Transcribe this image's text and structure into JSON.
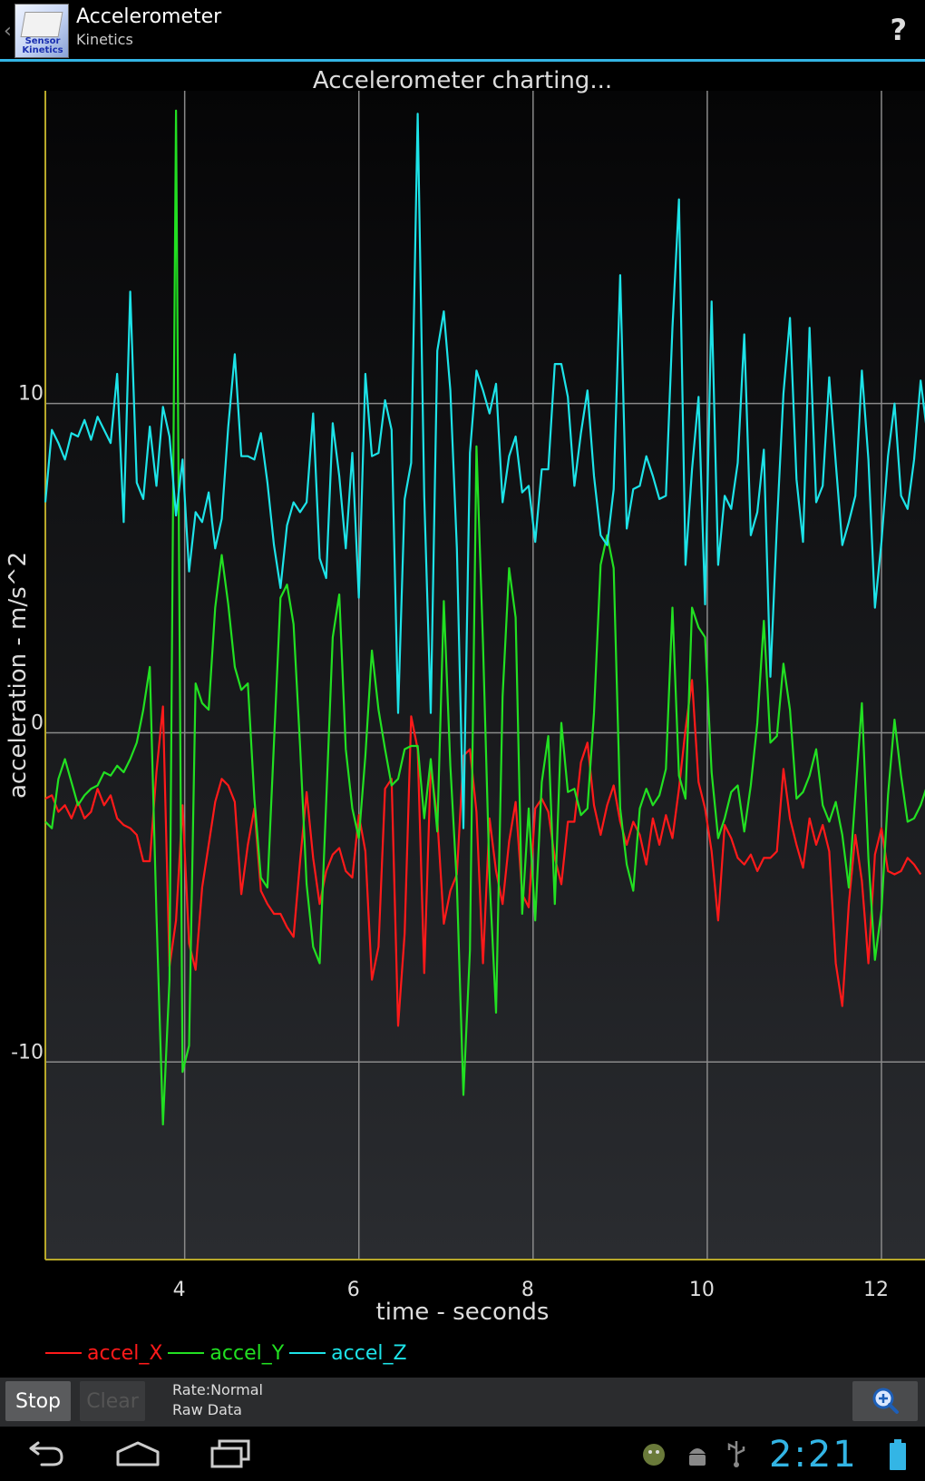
{
  "action_bar": {
    "title": "Accelerometer",
    "subtitle": "Kinetics",
    "icon_label": "Sensor Kinetics",
    "help_label": "?"
  },
  "chart_data": {
    "type": "line",
    "title": "Accelerometer charting...",
    "xlabel": "time - seconds",
    "ylabel": "acceleration - m/s^2",
    "xlim": [
      2.4,
      12.5
    ],
    "ylim": [
      -16,
      19.5
    ],
    "xticks": [
      4,
      6,
      8,
      10,
      12
    ],
    "yticks": [
      10,
      0,
      -10
    ],
    "x_start": 2.4,
    "x_step": 0.075,
    "series": [
      {
        "name": "accel_X",
        "color": "#ff1a1a",
        "values": [
          -2.0,
          -1.9,
          -2.4,
          -2.2,
          -2.6,
          -2.1,
          -2.6,
          -2.4,
          -1.7,
          -2.2,
          -1.9,
          -2.6,
          -2.8,
          -2.9,
          -3.1,
          -3.9,
          -3.9,
          -1.2,
          0.8,
          -7.1,
          -5.7,
          -2.2,
          -6.4,
          -7.2,
          -4.7,
          -3.4,
          -2.1,
          -1.4,
          -1.6,
          -2.1,
          -4.9,
          -3.4,
          -2.3,
          -4.8,
          -5.2,
          -5.5,
          -5.5,
          -5.9,
          -6.2,
          -3.9,
          -1.8,
          -3.8,
          -5.2,
          -4.2,
          -3.7,
          -3.5,
          -4.2,
          -4.4,
          -2.5,
          -3.6,
          -7.5,
          -6.5,
          -1.7,
          -1.4,
          -8.9,
          -6.1,
          0.5,
          -0.5,
          -7.3,
          -1.0,
          -2.6,
          -5.8,
          -4.8,
          -4.3,
          -0.7,
          -0.5,
          -2.4,
          -7.0,
          -2.6,
          -4.2,
          -5.2,
          -3.3,
          -2.1,
          -4.9,
          -5.3,
          -2.3,
          -2.0,
          -2.4,
          -3.8,
          -4.6,
          -2.7,
          -2.7,
          -0.9,
          -0.3,
          -2.2,
          -3.1,
          -2.2,
          -1.6,
          -2.7,
          -3.4,
          -2.7,
          -3.1,
          -4.0,
          -2.6,
          -3.4,
          -2.5,
          -3.2,
          -1.7,
          0.1,
          1.6,
          -1.5,
          -2.3,
          -3.6,
          -5.7,
          -2.8,
          -3.2,
          -3.8,
          -4.0,
          -3.7,
          -4.2,
          -3.8,
          -3.8,
          -3.6,
          -1.1,
          -2.6,
          -3.4,
          -4.1,
          -2.6,
          -3.4,
          -2.8,
          -3.6,
          -7.0,
          -8.3,
          -5.2,
          -3.1,
          -4.5,
          -7.0,
          -3.7,
          -2.9,
          -4.2,
          -4.3,
          -4.2,
          -3.8,
          -4.0,
          -4.3
        ]
      },
      {
        "name": "accel_Y",
        "color": "#22e022",
        "values": [
          -2.7,
          -2.9,
          -1.4,
          -0.8,
          -1.5,
          -2.2,
          -1.9,
          -1.7,
          -1.6,
          -1.2,
          -1.3,
          -1.0,
          -1.2,
          -0.8,
          -0.3,
          0.7,
          2.0,
          -5.5,
          -11.9,
          -7.5,
          18.9,
          -10.3,
          -9.5,
          1.5,
          0.9,
          0.7,
          3.8,
          5.4,
          3.9,
          2.0,
          1.3,
          1.5,
          -2.0,
          -4.4,
          -4.7,
          -0.3,
          4.1,
          4.5,
          3.3,
          -0.4,
          -4.6,
          -6.5,
          -7.0,
          -2.1,
          2.9,
          4.2,
          -0.5,
          -2.3,
          -3.2,
          -0.7,
          2.5,
          0.7,
          -0.5,
          -1.6,
          -1.4,
          -0.5,
          -0.4,
          -0.4,
          -2.6,
          -0.8,
          -3.0,
          4.0,
          -1.0,
          -4.6,
          -11.0,
          -6.6,
          8.7,
          2.7,
          -4.4,
          -8.5,
          1.1,
          5.0,
          3.5,
          -5.5,
          -2.3,
          -5.7,
          -1.5,
          -0.1,
          -5.2,
          0.3,
          -1.8,
          -1.7,
          -2.5,
          -2.3,
          0.6,
          5.1,
          6.0,
          5.0,
          -2.3,
          -4.0,
          -4.8,
          -2.3,
          -1.7,
          -2.2,
          -1.9,
          -1.1,
          3.8,
          -1.3,
          -2.0,
          3.8,
          3.2,
          2.9,
          -1.2,
          -3.2,
          -2.6,
          -1.8,
          -1.6,
          -3.0,
          -1.6,
          0.3,
          3.4,
          -0.3,
          -0.1,
          2.1,
          0.7,
          -2.0,
          -1.8,
          -1.3,
          -0.5,
          -2.2,
          -2.7,
          -2.1,
          -3.1,
          -4.7,
          -1.9,
          0.9,
          -3.8,
          -6.9,
          -5.4,
          -1.9,
          0.4,
          -1.3,
          -2.7,
          -2.6,
          -2.2,
          -1.6,
          -1.1,
          -0.9,
          -0.6
        ]
      },
      {
        "name": "accel_Z",
        "color": "#1de3e8",
        "values": [
          7.0,
          9.2,
          8.8,
          8.3,
          9.1,
          9.0,
          9.5,
          8.9,
          9.6,
          9.2,
          8.8,
          10.9,
          6.4,
          13.4,
          7.6,
          7.1,
          9.3,
          7.5,
          9.9,
          9.0,
          6.6,
          8.3,
          4.9,
          6.7,
          6.4,
          7.3,
          5.6,
          6.5,
          9.3,
          11.5,
          8.4,
          8.4,
          8.3,
          9.1,
          7.6,
          5.7,
          4.4,
          6.3,
          7.0,
          6.7,
          7.0,
          9.7,
          5.3,
          4.7,
          9.4,
          7.8,
          5.6,
          8.5,
          4.1,
          10.9,
          8.4,
          8.5,
          10.1,
          9.2,
          0.6,
          7.1,
          8.2,
          18.8,
          7.2,
          0.6,
          11.6,
          12.8,
          10.4,
          5.6,
          -2.9,
          8.5,
          11.0,
          10.4,
          9.7,
          10.6,
          7.0,
          8.4,
          9.0,
          7.3,
          7.5,
          5.8,
          8.0,
          8.0,
          11.2,
          11.2,
          10.2,
          7.5,
          9.1,
          10.4,
          7.8,
          6.0,
          5.7,
          7.4,
          13.9,
          6.2,
          7.4,
          7.5,
          8.4,
          7.8,
          7.1,
          7.2,
          12.3,
          16.2,
          5.1,
          8.0,
          10.2,
          3.9,
          13.1,
          5.1,
          7.2,
          6.8,
          8.2,
          12.1,
          6.0,
          6.7,
          8.6,
          1.7,
          6.3,
          10.3,
          12.6,
          7.7,
          5.8,
          12.3,
          7.0,
          7.5,
          10.8,
          8.2,
          5.7,
          6.4,
          7.2,
          11.0,
          8.3,
          3.8,
          5.8,
          8.4,
          10.0,
          7.2,
          6.8,
          8.3,
          10.7,
          9.1,
          7.8,
          8.3
        ]
      }
    ]
  },
  "legend": [
    {
      "name": "accel_X",
      "color": "#ff1a1a"
    },
    {
      "name": "accel_Y",
      "color": "#22e022"
    },
    {
      "name": "accel_Z",
      "color": "#1de3e8"
    }
  ],
  "controls": {
    "stop_label": "Stop",
    "clear_label": "Clear",
    "rate_text": "Rate:Normal",
    "raw_text": "Raw Data"
  },
  "system_bar": {
    "clock": "2:21"
  }
}
